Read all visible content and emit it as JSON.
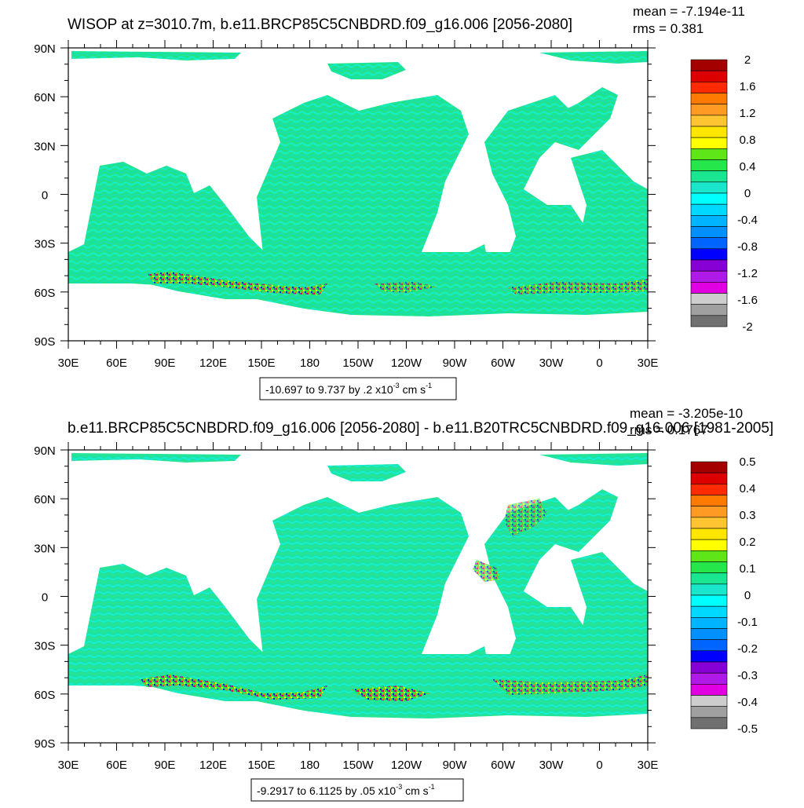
{
  "chart_data": [
    {
      "type": "heatmap",
      "title": "WISOP at z=3010.7m, b.e11.BRCP85C5CNBDRD.f09_g16.006 [2056-2080]",
      "stats": {
        "mean": "mean = -7.194e-11",
        "rms": "rms = 0.381"
      },
      "y_ticks": [
        "90N",
        "60N",
        "30N",
        "0",
        "30S",
        "60S",
        "90S"
      ],
      "x_ticks": [
        "30E",
        "60E",
        "90E",
        "120E",
        "150E",
        "180",
        "150W",
        "120W",
        "90W",
        "60W",
        "30W",
        "0",
        "30E"
      ],
      "range_label": {
        "prefix": "-10.697 to 9.737 by .2 x10",
        "exp": "-3",
        "unit": " cm s",
        "unit_exp": "-1"
      },
      "colorbar": {
        "labels": [
          "2",
          "1.6",
          "1.2",
          "0.8",
          "0.4",
          "0",
          "-0.4",
          "-0.8",
          "-1.2",
          "-1.6",
          "-2"
        ],
        "colors": [
          "#a50000",
          "#dc0000",
          "#ff2b00",
          "#ff7a00",
          "#ff9b24",
          "#ffc431",
          "#ffe600",
          "#ffff00",
          "#5fe619",
          "#25e64b",
          "#1ae692",
          "#1ae6cc",
          "#00ffff",
          "#00d9ff",
          "#00b4ff",
          "#0091ff",
          "#0064ff",
          "#0000ff",
          "#8700d4",
          "#af1ae6",
          "#e100e1",
          "#cdcdcd",
          "#a0a0a0",
          "#707070"
        ]
      },
      "field": {
        "dominant_range": [
          -0.4,
          0.4
        ],
        "extreme_band": "Southern Ocean near 60S"
      }
    },
    {
      "type": "heatmap",
      "title": "b.e11.BRCP85C5CNBDRD.f09_g16.006 [2056-2080] - b.e11.B20TRC5CNBDRD.f09_g16.006 [1981-2005]",
      "stats": {
        "mean": "mean = -3.205e-10",
        "rms": "rms = 0.1767"
      },
      "y_ticks": [
        "90N",
        "60N",
        "30N",
        "0",
        "30S",
        "60S",
        "90S"
      ],
      "x_ticks": [
        "30E",
        "60E",
        "90E",
        "120E",
        "150E",
        "180",
        "150W",
        "120W",
        "90W",
        "60W",
        "30W",
        "0",
        "30E"
      ],
      "range_label": {
        "prefix": "-9.2917 to 6.1125 by .05 x10",
        "exp": "-3",
        "unit": " cm s",
        "unit_exp": "-1"
      },
      "colorbar": {
        "labels": [
          "0.5",
          "0.4",
          "0.3",
          "0.2",
          "0.1",
          "0",
          "-0.1",
          "-0.2",
          "-0.3",
          "-0.4",
          "-0.5"
        ],
        "colors": [
          "#a50000",
          "#dc0000",
          "#ff2b00",
          "#ff7a00",
          "#ff9b24",
          "#ffc431",
          "#ffe600",
          "#ffff00",
          "#5fe619",
          "#25e64b",
          "#1ae692",
          "#1ae6cc",
          "#00ffff",
          "#00d9ff",
          "#00b4ff",
          "#0091ff",
          "#0064ff",
          "#0000ff",
          "#8700d4",
          "#af1ae6",
          "#e100e1",
          "#cdcdcd",
          "#a0a0a0",
          "#707070"
        ]
      },
      "field": {
        "dominant_range": [
          -0.1,
          0.1
        ],
        "extreme_band": "Southern Ocean near 60S"
      }
    }
  ]
}
